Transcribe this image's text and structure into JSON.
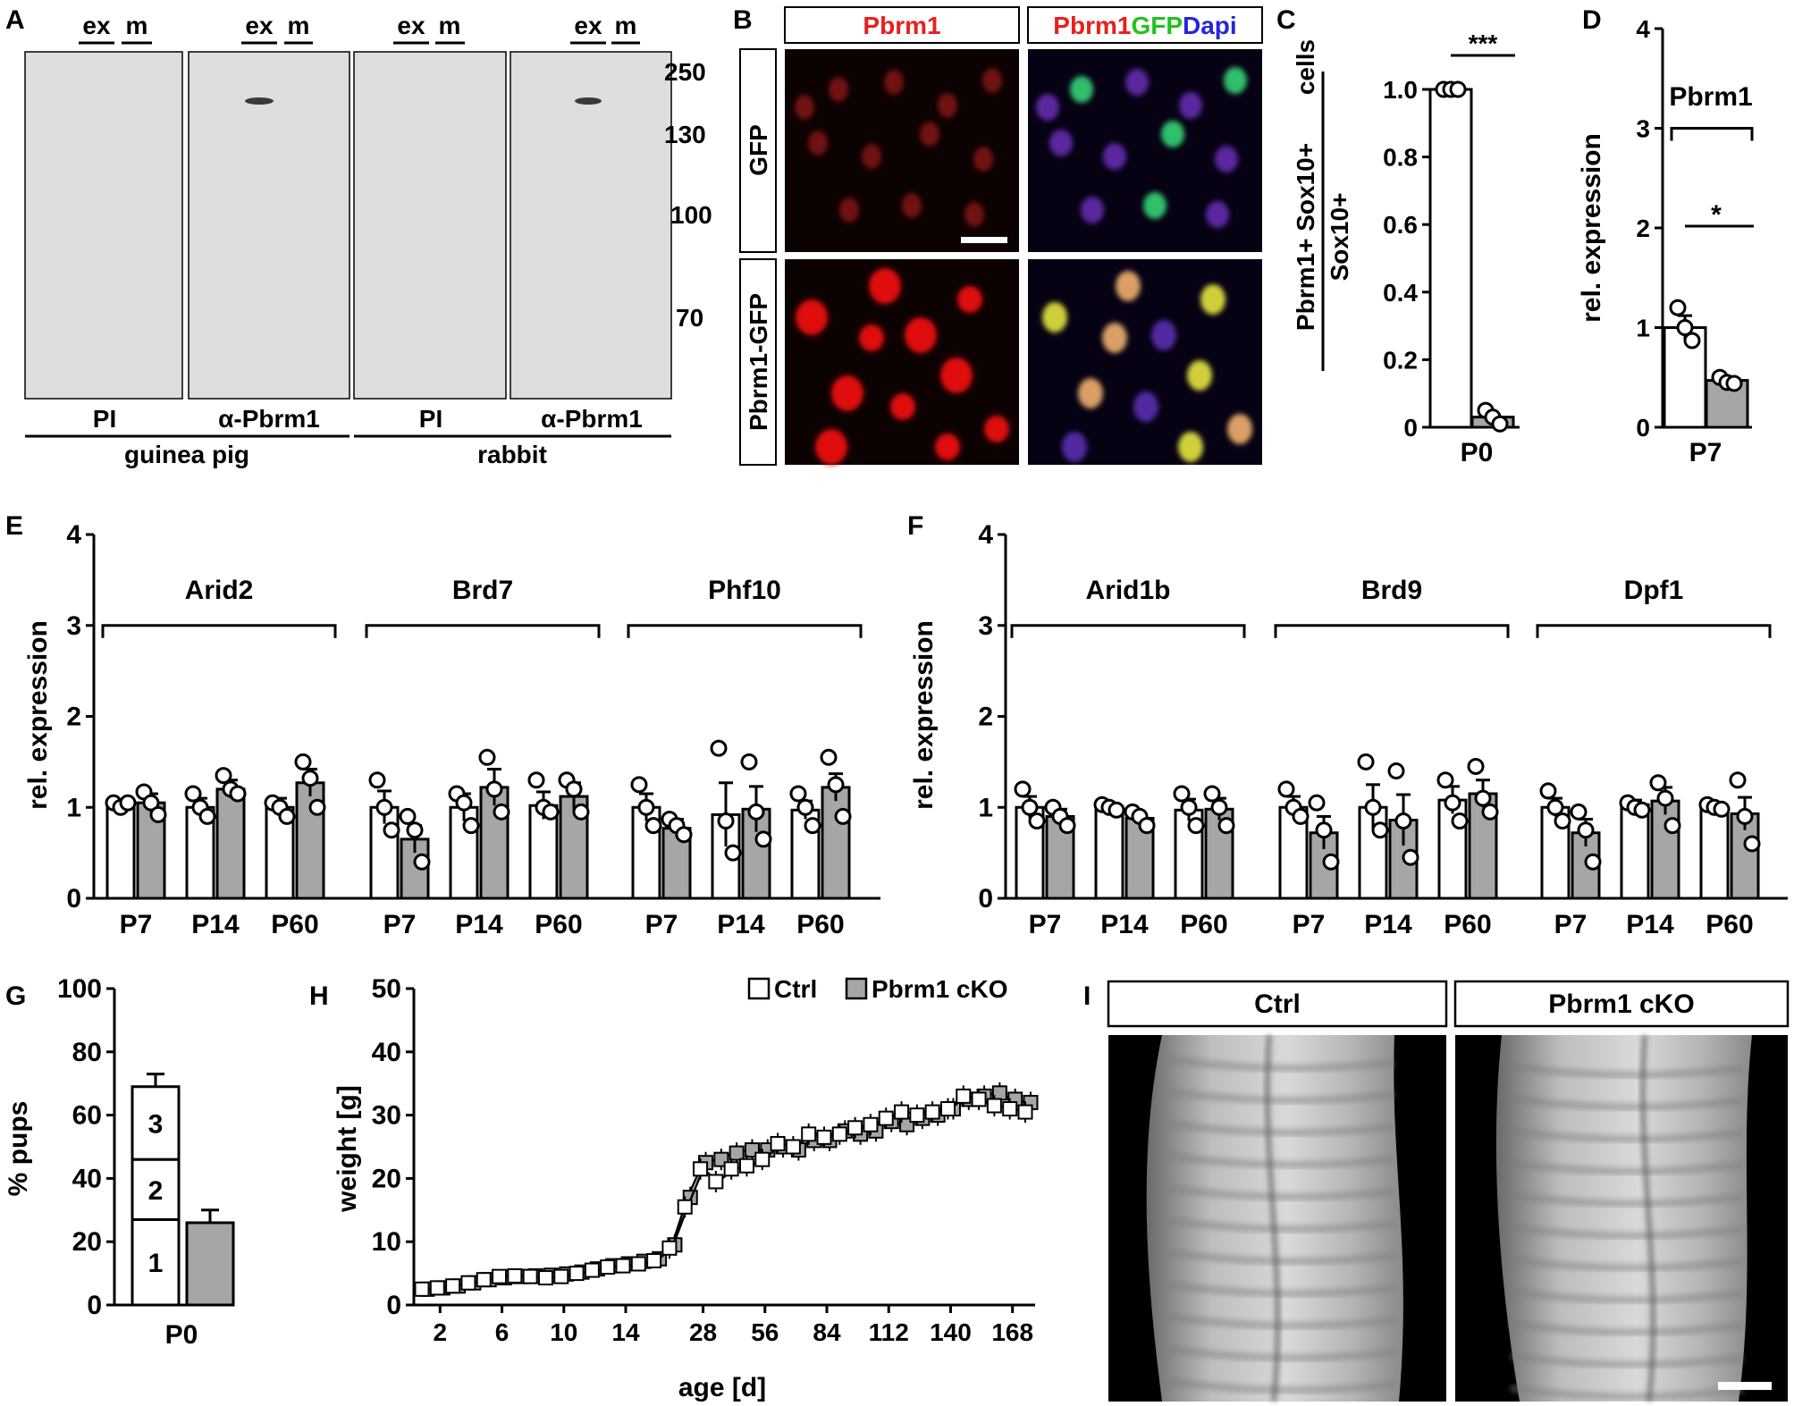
{
  "colors": {
    "ctrl": "#ffffff",
    "cko": "#a6a6a6",
    "red": "#e8201e",
    "green": "#22c21e",
    "blue": "#2525e0"
  },
  "panelA": {
    "label": "A",
    "lane_top": [
      "ex",
      "m",
      "ex",
      "m",
      "ex",
      "m",
      "ex",
      "m"
    ],
    "markers": [
      "250",
      "130",
      "100",
      "70"
    ],
    "lane_bottom": [
      "PI",
      "α-Pbrm1",
      "PI",
      "α-Pbrm1"
    ],
    "species": [
      "guinea pig",
      "rabbit"
    ]
  },
  "panelB": {
    "label": "B",
    "col1": "Pbrm1",
    "col2": [
      {
        "text": "Pbrm1",
        "color": "red"
      },
      {
        "text": "GFP",
        "color": "green"
      },
      {
        "text": "Dapi",
        "color": "blue"
      }
    ],
    "rows": [
      "GFP",
      "Pbrm1-GFP"
    ]
  },
  "panelG": {
    "label": "G"
  },
  "panelH": {
    "label": "H",
    "legend": [
      "Ctrl",
      "Pbrm1 cKO"
    ]
  },
  "panelI": {
    "label": "I",
    "titles": [
      "Ctrl",
      "Pbrm1 cKO"
    ]
  },
  "chart_data": [
    {
      "panel": "C",
      "type": "bar",
      "ylabel_top": "Pbrm1+ Sox10+",
      "ylabel_right": "cells",
      "ylabel_bottom": "Sox10+",
      "ylim": [
        0,
        1.0
      ],
      "yticks": [
        "0",
        "0.2",
        "0.4",
        "0.6",
        "0.8",
        "1.0"
      ],
      "category": "P0",
      "bars": [
        {
          "value": 1.0,
          "points": [
            1.0,
            1.0,
            1.0
          ]
        },
        {
          "value": 0.03,
          "points": [
            0.05,
            0.03,
            0.01
          ]
        }
      ],
      "significance": "***"
    },
    {
      "panel": "D",
      "type": "bar",
      "ylabel": "rel. expression",
      "ylim": [
        0,
        4
      ],
      "yticks": [
        "0",
        "1",
        "2",
        "3",
        "4"
      ],
      "gene": "Pbrm1",
      "category": "P7",
      "bars": [
        {
          "value": 1.0,
          "err": 0.12,
          "points": [
            1.2,
            1.0,
            0.87
          ]
        },
        {
          "value": 0.47,
          "err": 0.03,
          "points": [
            0.5,
            0.45,
            0.44
          ]
        }
      ],
      "significance": "*"
    },
    {
      "panel": "E",
      "type": "bar",
      "ylabel": "rel. expression",
      "ylim": [
        0,
        4
      ],
      "yticks": [
        "0",
        "1",
        "2",
        "3",
        "4"
      ],
      "categories": [
        "P7",
        "P14",
        "P60",
        "P7",
        "P14",
        "P60",
        "P7",
        "P14",
        "P60"
      ],
      "groups": [
        {
          "gene": "Arid2",
          "bars": [
            {
              "ctrl": 1.02,
              "ctrl_err": 0.05,
              "ctrl_pts": [
                1.05,
                1.0,
                1.05
              ],
              "cko": 1.05,
              "cko_err": 0.1,
              "cko_pts": [
                1.17,
                1.05,
                0.92
              ]
            },
            {
              "ctrl": 1.0,
              "ctrl_err": 0.1,
              "ctrl_pts": [
                1.15,
                1.0,
                0.9
              ],
              "cko": 1.2,
              "cko_err": 0.1,
              "cko_pts": [
                1.35,
                1.2,
                1.15
              ]
            },
            {
              "ctrl": 1.0,
              "ctrl_err": 0.1,
              "ctrl_pts": [
                1.05,
                1.0,
                0.9
              ],
              "cko": 1.27,
              "cko_err": 0.15,
              "cko_pts": [
                1.5,
                1.32,
                1.0
              ]
            }
          ]
        },
        {
          "gene": "Brd7",
          "bars": [
            {
              "ctrl": 1.0,
              "ctrl_err": 0.18,
              "ctrl_pts": [
                1.3,
                1.0,
                0.75
              ],
              "cko": 0.65,
              "cko_err": 0.15,
              "cko_pts": [
                0.9,
                0.75,
                0.4
              ]
            },
            {
              "ctrl": 1.0,
              "ctrl_err": 0.15,
              "ctrl_pts": [
                1.15,
                1.05,
                0.8
              ],
              "cko": 1.22,
              "cko_err": 0.2,
              "cko_pts": [
                1.55,
                1.2,
                0.95
              ]
            },
            {
              "ctrl": 1.02,
              "ctrl_err": 0.15,
              "ctrl_pts": [
                1.3,
                1.0,
                0.95
              ],
              "cko": 1.12,
              "cko_err": 0.15,
              "cko_pts": [
                1.3,
                1.2,
                0.95
              ]
            }
          ]
        },
        {
          "gene": "Phf10",
          "bars": [
            {
              "ctrl": 1.0,
              "ctrl_err": 0.15,
              "ctrl_pts": [
                1.25,
                1.0,
                0.8
              ],
              "cko": 0.77,
              "cko_err": 0.1,
              "cko_pts": [
                0.87,
                0.8,
                0.7
              ]
            },
            {
              "ctrl": 0.92,
              "ctrl_err": 0.35,
              "ctrl_pts": [
                1.65,
                0.85,
                0.5
              ],
              "cko": 0.98,
              "cko_err": 0.25,
              "cko_pts": [
                1.5,
                0.95,
                0.65
              ]
            },
            {
              "ctrl": 0.97,
              "ctrl_err": 0.1,
              "ctrl_pts": [
                1.15,
                1.0,
                0.8
              ],
              "cko": 1.22,
              "cko_err": 0.15,
              "cko_pts": [
                1.55,
                1.25,
                0.9
              ]
            }
          ]
        }
      ]
    },
    {
      "panel": "F",
      "type": "bar",
      "ylabel": "rel. expression",
      "ylim": [
        0,
        4
      ],
      "yticks": [
        "0",
        "1",
        "2",
        "3",
        "4"
      ],
      "categories": [
        "P7",
        "P14",
        "P60",
        "P7",
        "P14",
        "P60",
        "P7",
        "P14",
        "P60"
      ],
      "groups": [
        {
          "gene": "Arid1b",
          "bars": [
            {
              "ctrl": 1.0,
              "ctrl_err": 0.12,
              "ctrl_pts": [
                1.2,
                1.0,
                0.85
              ],
              "cko": 0.9,
              "cko_err": 0.08,
              "cko_pts": [
                1.0,
                0.9,
                0.8
              ]
            },
            {
              "ctrl": 1.0,
              "ctrl_err": 0.03,
              "ctrl_pts": [
                1.03,
                1.0,
                0.97
              ],
              "cko": 0.88,
              "cko_err": 0.06,
              "cko_pts": [
                0.95,
                0.9,
                0.8
              ]
            },
            {
              "ctrl": 0.97,
              "ctrl_err": 0.12,
              "ctrl_pts": [
                1.15,
                1.0,
                0.8
              ],
              "cko": 0.98,
              "cko_err": 0.12,
              "cko_pts": [
                1.15,
                1.0,
                0.8
              ]
            }
          ]
        },
        {
          "gene": "Brd9",
          "bars": [
            {
              "ctrl": 1.0,
              "ctrl_err": 0.12,
              "ctrl_pts": [
                1.2,
                1.0,
                0.9
              ],
              "cko": 0.72,
              "cko_err": 0.18,
              "cko_pts": [
                1.05,
                0.75,
                0.4
              ]
            },
            {
              "ctrl": 1.0,
              "ctrl_err": 0.25,
              "ctrl_pts": [
                1.5,
                1.0,
                0.75
              ],
              "cko": 0.86,
              "cko_err": 0.28,
              "cko_pts": [
                1.4,
                0.85,
                0.45
              ]
            },
            {
              "ctrl": 1.08,
              "ctrl_err": 0.15,
              "ctrl_pts": [
                1.3,
                1.05,
                0.85
              ],
              "cko": 1.15,
              "cko_err": 0.15,
              "cko_pts": [
                1.45,
                1.1,
                0.95
              ]
            }
          ]
        },
        {
          "gene": "Dpf1",
          "bars": [
            {
              "ctrl": 1.0,
              "ctrl_err": 0.1,
              "ctrl_pts": [
                1.18,
                1.0,
                0.85
              ],
              "cko": 0.72,
              "cko_err": 0.15,
              "cko_pts": [
                0.95,
                0.75,
                0.4
              ]
            },
            {
              "ctrl": 1.03,
              "ctrl_err": 0.05,
              "ctrl_pts": [
                1.05,
                1.0,
                0.97
              ],
              "cko": 1.07,
              "cko_err": 0.15,
              "cko_pts": [
                1.27,
                1.1,
                0.8
              ]
            },
            {
              "ctrl": 1.0,
              "ctrl_err": 0.03,
              "ctrl_pts": [
                1.03,
                1.0,
                0.98
              ],
              "cko": 0.93,
              "cko_err": 0.18,
              "cko_pts": [
                1.3,
                0.9,
                0.6
              ]
            }
          ]
        }
      ]
    },
    {
      "panel": "G",
      "type": "bar",
      "ylabel": "% pups",
      "ylim": [
        0,
        100
      ],
      "yticks": [
        "0",
        "20",
        "40",
        "60",
        "80",
        "100"
      ],
      "category": "P0",
      "ctrl_stack": [
        {
          "label": "1",
          "value": 27
        },
        {
          "label": "2",
          "value": 19
        },
        {
          "label": "3",
          "value": 23
        }
      ],
      "ctrl_total": 69,
      "ctrl_err": 4,
      "cko": 26,
      "cko_err": 4
    },
    {
      "panel": "H",
      "type": "line",
      "xlabel": "age [d]",
      "ylabel": "weight [g]",
      "ylim": [
        0,
        50
      ],
      "yticks": [
        "0",
        "10",
        "20",
        "30",
        "40",
        "50"
      ],
      "xtick_labels": [
        "2",
        "6",
        "10",
        "14",
        "28",
        "56",
        "84",
        "112",
        "140",
        "168"
      ],
      "series": [
        {
          "name": "Ctrl",
          "values": [
            2.5,
            2.7,
            3.0,
            3.5,
            4.0,
            4.5,
            4.6,
            4.5,
            4.3,
            4.5,
            5.0,
            5.5,
            6.0,
            6.2,
            6.5,
            7.0,
            9.0,
            15.5,
            21.5,
            19.5,
            21.5,
            22.0,
            23.0,
            25.5,
            25.0,
            27.0,
            26.5,
            27.0,
            28.0,
            28.5,
            29.5,
            30.5,
            30.0,
            30.5,
            31.0,
            33.0,
            32.5,
            31.5,
            31.0,
            30.5
          ]
        },
        {
          "name": "Pbrm1 cKO",
          "values": [
            2.5,
            2.7,
            3.0,
            3.5,
            4.0,
            4.3,
            4.5,
            4.6,
            4.7,
            4.9,
            5.2,
            5.7,
            6.2,
            6.5,
            6.9,
            7.3,
            9.5,
            17.0,
            22.5,
            23.0,
            24.0,
            24.5,
            24.5,
            25.0,
            24.5,
            26.0,
            26.0,
            27.5,
            27.0,
            27.5,
            29.0,
            28.5,
            29.5,
            30.0,
            31.0,
            32.5,
            33.0,
            33.5,
            32.5,
            32.0
          ]
        }
      ]
    }
  ]
}
